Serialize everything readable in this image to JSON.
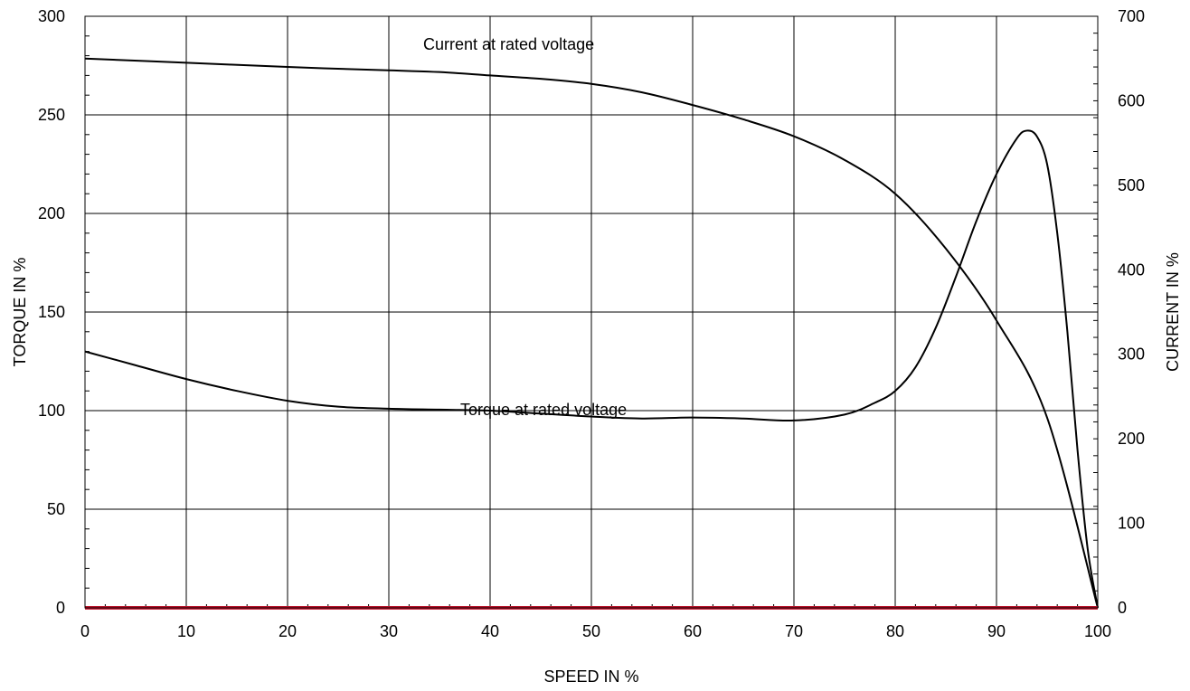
{
  "chart_data": {
    "type": "line",
    "xlabel": "SPEED IN %",
    "ylabel": "TORQUE IN %",
    "y2label": "CURRENT IN %",
    "xlim": [
      0,
      100
    ],
    "ylim": [
      0,
      300
    ],
    "y2lim": [
      0,
      700
    ],
    "xticks": [
      "0",
      "10",
      "20",
      "30",
      "40",
      "50",
      "60",
      "70",
      "80",
      "90",
      "100"
    ],
    "yticks": [
      "0",
      "50",
      "100",
      "150",
      "200",
      "250",
      "300"
    ],
    "y2ticks": [
      "0",
      "100",
      "200",
      "300",
      "400",
      "500",
      "600",
      "700"
    ],
    "grid": true,
    "annotations": [
      {
        "text": "Current at rated voltage"
      },
      {
        "text": "Torque at rated voltage"
      }
    ],
    "series": [
      {
        "axis": "right",
        "color": "#000000",
        "x": [
          0,
          10,
          20,
          30,
          35,
          40,
          45,
          50,
          55,
          60,
          65,
          70,
          75,
          80,
          85,
          90,
          95,
          100
        ],
        "y": [
          650,
          645,
          640,
          636,
          634,
          630,
          626,
          620,
          610,
          595,
          578,
          558,
          530,
          490,
          425,
          340,
          225,
          0
        ]
      },
      {
        "axis": "left",
        "color": "#000000",
        "x": [
          0,
          5,
          10,
          15,
          20,
          25,
          30,
          35,
          40,
          45,
          50,
          55,
          60,
          65,
          70,
          75,
          78,
          80,
          82,
          84,
          86,
          88,
          90,
          92,
          93,
          94,
          95,
          96,
          97,
          98,
          99,
          100
        ],
        "y": [
          130,
          123,
          116,
          110,
          105,
          102,
          101,
          100.5,
          100,
          98.5,
          97,
          96,
          96.5,
          96,
          95,
          98,
          104,
          110,
          122,
          142,
          168,
          196,
          220,
          238,
          242,
          239,
          225,
          190,
          140,
          80,
          30,
          0
        ]
      },
      {
        "axis": "left",
        "color": "#c0152d",
        "x": [
          0,
          100
        ],
        "y": [
          0,
          0
        ]
      }
    ]
  }
}
